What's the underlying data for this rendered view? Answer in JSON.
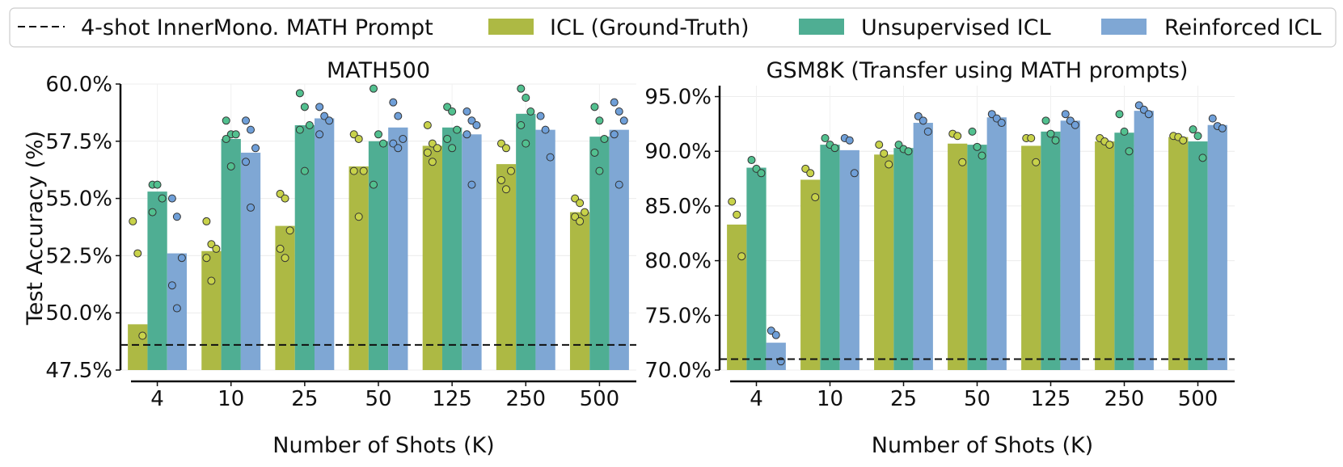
{
  "legend": {
    "items": [
      {
        "label": "4-shot InnerMono. MATH Prompt",
        "kind": "dashed-line",
        "color": "#111111"
      },
      {
        "label": "ICL (Ground-Truth)",
        "kind": "patch",
        "color": "#adb944"
      },
      {
        "label": "Unsupervised ICL",
        "kind": "patch",
        "color": "#4fae93"
      },
      {
        "label": "Reinforced ICL",
        "kind": "patch",
        "color": "#7fa7d4"
      }
    ]
  },
  "chart_data": [
    {
      "type": "bar",
      "title": "MATH500",
      "xlabel": "Number of Shots (K)",
      "ylabel": "Test Accuracy (%)",
      "ylim": [
        47.5,
        60.0
      ],
      "yticks": [
        "47.5%",
        "50.0%",
        "52.5%",
        "55.0%",
        "57.5%",
        "60.0%"
      ],
      "categories": [
        "4",
        "10",
        "25",
        "50",
        "125",
        "250",
        "500"
      ],
      "baseline": 48.6,
      "grid": true,
      "series": [
        {
          "name": "ICL (Ground-Truth)",
          "values": [
            49.5,
            52.7,
            53.8,
            56.4,
            57.3,
            56.5,
            54.4
          ],
          "points": [
            [
              54.0,
              52.6,
              49.0
            ],
            [
              54.0,
              53.0,
              52.8,
              52.4,
              51.4
            ],
            [
              55.2,
              55.0,
              53.6,
              52.8,
              52.4
            ],
            [
              57.8,
              57.6,
              56.2,
              56.2,
              54.2
            ],
            [
              58.2,
              57.4,
              57.2,
              57.0,
              56.6
            ],
            [
              57.4,
              57.2,
              56.2,
              55.8,
              55.4
            ],
            [
              55.0,
              54.8,
              54.4,
              54.2,
              54.0
            ]
          ]
        },
        {
          "name": "Unsupervised ICL",
          "values": [
            55.3,
            57.6,
            58.2,
            57.5,
            58.1,
            58.7,
            57.7
          ],
          "points": [
            [
              55.6,
              55.6,
              55.0,
              54.4
            ],
            [
              58.4,
              57.8,
              57.8,
              57.6,
              56.4
            ],
            [
              59.6,
              59.0,
              58.2,
              58.0,
              56.2
            ],
            [
              59.8,
              57.8,
              57.4,
              55.6
            ],
            [
              59.0,
              58.8,
              58.0,
              57.6,
              57.2
            ],
            [
              59.8,
              59.4,
              58.8,
              58.2,
              57.4
            ],
            [
              59.0,
              58.4,
              57.6,
              57.0,
              56.2
            ]
          ]
        },
        {
          "name": "Reinforced ICL",
          "values": [
            52.6,
            57.0,
            58.5,
            58.1,
            57.8,
            58.0,
            58.0
          ],
          "points": [
            [
              55.0,
              54.2,
              52.4,
              51.2,
              50.2
            ],
            [
              58.4,
              58.0,
              57.2,
              56.6,
              54.6
            ],
            [
              59.0,
              58.6,
              58.4,
              57.8
            ],
            [
              59.2,
              58.6,
              57.6,
              57.4,
              57.2
            ],
            [
              58.8,
              58.4,
              58.2,
              57.8,
              55.6
            ],
            [
              58.6,
              58.0,
              56.8
            ],
            [
              59.2,
              58.8,
              58.4,
              57.8,
              55.6
            ]
          ]
        }
      ]
    },
    {
      "type": "bar",
      "title": "GSM8K (Transfer using MATH prompts)",
      "xlabel": "Number of Shots (K)",
      "ylabel": "",
      "ylim": [
        70.0,
        96.0
      ],
      "yticks": [
        "70.0%",
        "75.0%",
        "80.0%",
        "85.0%",
        "90.0%",
        "95.0%"
      ],
      "categories": [
        "4",
        "10",
        "25",
        "50",
        "125",
        "250",
        "500"
      ],
      "baseline": 71.0,
      "grid": true,
      "series": [
        {
          "name": "ICL (Ground-Truth)",
          "values": [
            83.3,
            87.4,
            89.7,
            90.7,
            90.5,
            90.9,
            91.3
          ],
          "points": [
            [
              85.4,
              84.2,
              80.4
            ],
            [
              88.4,
              88.0,
              85.8
            ],
            [
              90.6,
              89.8,
              88.8
            ],
            [
              91.6,
              91.4,
              89.0
            ],
            [
              91.2,
              91.2,
              89.0
            ],
            [
              91.2,
              90.9,
              90.6
            ],
            [
              91.4,
              91.3,
              91.0
            ]
          ]
        },
        {
          "name": "Unsupervised ICL",
          "values": [
            88.5,
            90.6,
            90.3,
            90.6,
            91.8,
            91.7,
            90.9
          ],
          "points": [
            [
              89.2,
              88.4,
              88.0
            ],
            [
              91.2,
              90.6,
              90.3
            ],
            [
              90.6,
              90.2,
              90.0
            ],
            [
              91.8,
              90.4,
              89.6
            ],
            [
              92.8,
              91.6,
              91.0
            ],
            [
              93.4,
              91.8,
              90.0
            ],
            [
              92.0,
              91.4,
              89.4
            ]
          ]
        },
        {
          "name": "Reinforced ICL",
          "values": [
            72.5,
            90.1,
            92.6,
            93.1,
            92.8,
            93.7,
            92.4
          ],
          "points": [
            [
              73.6,
              73.2,
              70.8
            ],
            [
              91.2,
              91.0,
              88.0
            ],
            [
              93.2,
              92.8,
              91.8
            ],
            [
              93.4,
              93.0,
              92.6
            ],
            [
              93.4,
              92.8,
              92.4
            ],
            [
              94.2,
              93.8,
              93.4
            ],
            [
              93.0,
              92.3,
              92.1
            ]
          ]
        }
      ]
    }
  ]
}
